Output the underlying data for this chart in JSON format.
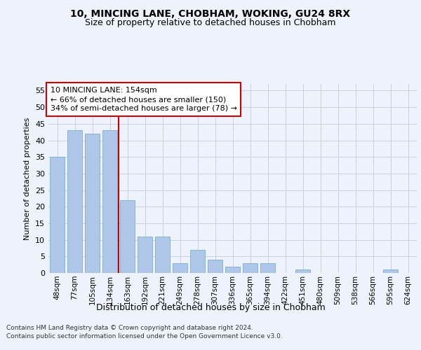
{
  "title_line1": "10, MINCING LANE, CHOBHAM, WOKING, GU24 8RX",
  "title_line2": "Size of property relative to detached houses in Chobham",
  "xlabel": "Distribution of detached houses by size in Chobham",
  "ylabel": "Number of detached properties",
  "categories": [
    "48sqm",
    "77sqm",
    "105sqm",
    "134sqm",
    "163sqm",
    "192sqm",
    "221sqm",
    "249sqm",
    "278sqm",
    "307sqm",
    "336sqm",
    "365sqm",
    "394sqm",
    "422sqm",
    "451sqm",
    "480sqm",
    "509sqm",
    "538sqm",
    "566sqm",
    "595sqm",
    "624sqm"
  ],
  "values": [
    35,
    43,
    42,
    43,
    22,
    11,
    11,
    3,
    7,
    4,
    2,
    3,
    3,
    0,
    1,
    0,
    0,
    0,
    0,
    1,
    0
  ],
  "bar_color": "#aec6e8",
  "bar_edge_color": "#7aaed0",
  "highlight_index": 4,
  "highlight_color": "#cc0000",
  "annotation_text": "10 MINCING LANE: 154sqm\n← 66% of detached houses are smaller (150)\n34% of semi-detached houses are larger (78) →",
  "annotation_box_color": "#ffffff",
  "annotation_box_edge": "#cc0000",
  "ylim": [
    0,
    57
  ],
  "yticks": [
    0,
    5,
    10,
    15,
    20,
    25,
    30,
    35,
    40,
    45,
    50,
    55
  ],
  "footer_line1": "Contains HM Land Registry data © Crown copyright and database right 2024.",
  "footer_line2": "Contains public sector information licensed under the Open Government Licence v3.0.",
  "background_color": "#eef2fc",
  "grid_color": "#c8d0e0"
}
